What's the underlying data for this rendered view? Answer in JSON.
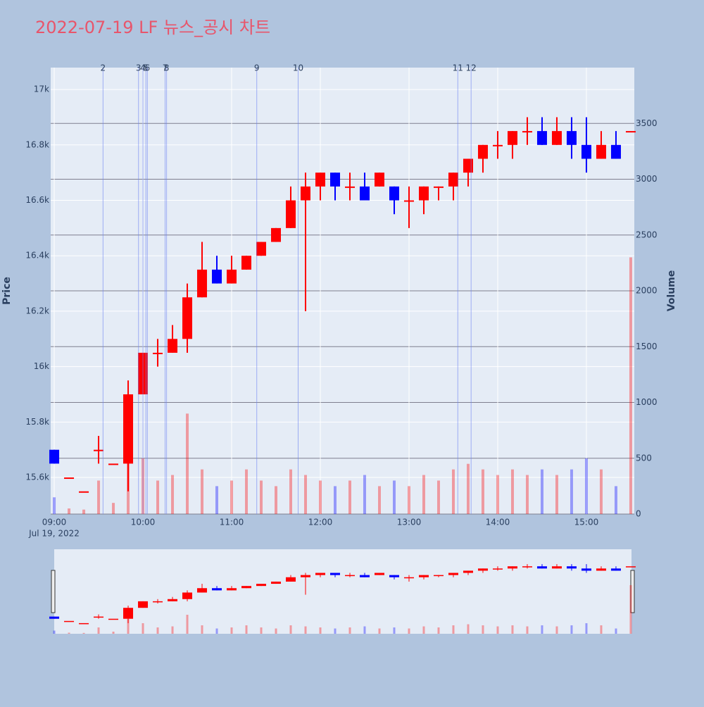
{
  "chart_data": {
    "type": "candlestick",
    "title": "2022-07-19 LF 뉴스_공시 차트",
    "y_label": "Price",
    "y2_label": "Volume",
    "x_date_label": "Jul 19, 2022",
    "up_color": "#ff0000",
    "down_color": "#0000ff",
    "xlim": [
      537.6,
      932.4
    ],
    "xticks": [
      {
        "value": 540,
        "label": "09:00"
      },
      {
        "value": 600,
        "label": "10:00"
      },
      {
        "value": 660,
        "label": "11:00"
      },
      {
        "value": 720,
        "label": "12:00"
      },
      {
        "value": 780,
        "label": "13:00"
      },
      {
        "value": 840,
        "label": "14:00"
      },
      {
        "value": 900,
        "label": "15:00"
      }
    ],
    "ylim": [
      15468,
      17079
    ],
    "yticks": [
      {
        "value": 15600,
        "label": "15.6k"
      },
      {
        "value": 15800,
        "label": "15.8k"
      },
      {
        "value": 16000,
        "label": "16k"
      },
      {
        "value": 16200,
        "label": "16.2k"
      },
      {
        "value": 16400,
        "label": "16.4k"
      },
      {
        "value": 16600,
        "label": "16.6k"
      },
      {
        "value": 16800,
        "label": "16.8k"
      },
      {
        "value": 17000,
        "label": "17k"
      }
    ],
    "y2lim": [
      0,
      4000
    ],
    "y2ticks": [
      0,
      500,
      1000,
      1500,
      2000,
      2500,
      3000,
      3500
    ],
    "x": [
      540,
      550,
      560,
      570,
      580,
      590,
      600,
      610,
      620,
      630,
      640,
      650,
      660,
      670,
      680,
      690,
      700,
      710,
      720,
      730,
      740,
      750,
      760,
      770,
      780,
      790,
      800,
      810,
      820,
      830,
      840,
      850,
      860,
      870,
      880,
      890,
      900,
      910,
      920,
      930
    ],
    "open": [
      15700,
      15600,
      15550,
      15700,
      15650,
      15650,
      15900,
      16050,
      16050,
      16100,
      16250,
      16350,
      16300,
      16350,
      16400,
      16450,
      16500,
      16600,
      16650,
      16700,
      16650,
      16650,
      16650,
      16650,
      16600,
      16600,
      16650,
      16650,
      16700,
      16750,
      16800,
      16800,
      16850,
      16850,
      16800,
      16850,
      16800,
      16750,
      16800,
      16850
    ],
    "high": [
      15700,
      15600,
      15550,
      15750,
      15650,
      15950,
      16050,
      16100,
      16150,
      16300,
      16450,
      16400,
      16400,
      16400,
      16450,
      16500,
      16650,
      16700,
      16700,
      16700,
      16700,
      16700,
      16700,
      16650,
      16650,
      16650,
      16650,
      16700,
      16750,
      16800,
      16850,
      16850,
      16900,
      16900,
      16900,
      16900,
      16900,
      16850,
      16850,
      16850
    ],
    "low": [
      15650,
      15600,
      15550,
      15650,
      15650,
      15550,
      15900,
      16000,
      16050,
      16050,
      16250,
      16300,
      16300,
      16350,
      16400,
      16450,
      16500,
      16200,
      16600,
      16600,
      16600,
      16600,
      16650,
      16550,
      16500,
      16550,
      16600,
      16600,
      16650,
      16700,
      16750,
      16750,
      16800,
      16800,
      16800,
      16750,
      16700,
      16750,
      16750,
      16850
    ],
    "close": [
      15650,
      15600,
      15550,
      15700,
      15650,
      15900,
      16050,
      16050,
      16100,
      16250,
      16350,
      16300,
      16350,
      16400,
      16450,
      16500,
      16600,
      16650,
      16700,
      16650,
      16650,
      16600,
      16700,
      16600,
      16600,
      16650,
      16650,
      16700,
      16750,
      16800,
      16800,
      16850,
      16850,
      16800,
      16850,
      16800,
      16750,
      16800,
      16750,
      16850
    ],
    "volume": [
      150,
      50,
      40,
      300,
      100,
      700,
      500,
      300,
      350,
      900,
      400,
      250,
      300,
      400,
      300,
      250,
      400,
      350,
      300,
      250,
      300,
      350,
      250,
      300,
      250,
      350,
      300,
      400,
      450,
      400,
      350,
      400,
      350,
      400,
      350,
      400,
      500,
      400,
      250,
      2300
    ],
    "news": [
      {
        "label": "2",
        "x": 573
      },
      {
        "label": "3",
        "x": 597
      },
      {
        "label": "4",
        "x": 600
      },
      {
        "label": "5",
        "x": 602
      },
      {
        "label": "6",
        "x": 603
      },
      {
        "label": "7",
        "x": 615
      },
      {
        "label": "8",
        "x": 616
      },
      {
        "label": "9",
        "x": 677
      },
      {
        "label": "10",
        "x": 705
      },
      {
        "label": "11",
        "x": 813
      },
      {
        "label": "12",
        "x": 822
      }
    ]
  }
}
